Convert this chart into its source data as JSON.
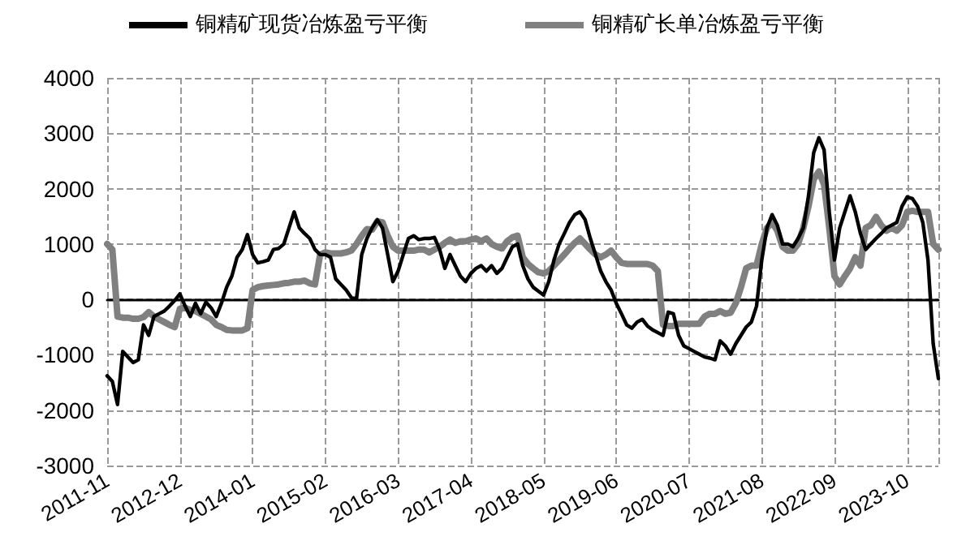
{
  "chart_data": {
    "type": "line",
    "categories": [
      "2011-11",
      null,
      null,
      null,
      null,
      null,
      null,
      null,
      null,
      null,
      null,
      null,
      null,
      null,
      "2012-12",
      null,
      null,
      null,
      null,
      null,
      null,
      null,
      null,
      null,
      null,
      null,
      null,
      null,
      "2014-01",
      null,
      null,
      null,
      null,
      null,
      null,
      null,
      null,
      null,
      null,
      null,
      null,
      null,
      "2015-02",
      null,
      null,
      null,
      null,
      null,
      null,
      null,
      null,
      null,
      null,
      null,
      null,
      null,
      "2016-03",
      null,
      null,
      null,
      null,
      null,
      null,
      null,
      null,
      null,
      null,
      null,
      null,
      null,
      "2017-04",
      null,
      null,
      null,
      null,
      null,
      null,
      null,
      null,
      null,
      null,
      null,
      null,
      null,
      "2018-05",
      null,
      null,
      null,
      null,
      null,
      null,
      null,
      null,
      null,
      null,
      null,
      null,
      null,
      "2019-06",
      null,
      null,
      null,
      null,
      null,
      null,
      null,
      null,
      null,
      null,
      null,
      null,
      null,
      "2020-07",
      null,
      null,
      null,
      null,
      null,
      null,
      null,
      null,
      null,
      null,
      null,
      null,
      null,
      "2021-08",
      null,
      null,
      null,
      null,
      null,
      null,
      null,
      null,
      null,
      null,
      null,
      null,
      null,
      "2022-09",
      null,
      null,
      null,
      null,
      null,
      null,
      null,
      null,
      null,
      null,
      null,
      null,
      null,
      "2023-10",
      null,
      null,
      null,
      null,
      null,
      null
    ],
    "series": [
      {
        "name": "铜精矿现货冶炼盈亏平衡",
        "color": "#000000",
        "values": [
          -1380,
          -1480,
          -1900,
          -940,
          -1040,
          -1140,
          -1090,
          -460,
          -650,
          -310,
          -260,
          -210,
          -120,
          -20,
          100,
          -120,
          -310,
          -70,
          -260,
          -50,
          -150,
          -310,
          -70,
          220,
          420,
          760,
          900,
          1170,
          810,
          660,
          680,
          710,
          900,
          920,
          1000,
          1290,
          1580,
          1290,
          1190,
          1100,
          900,
          810,
          810,
          760,
          370,
          270,
          170,
          30,
          10,
          810,
          1100,
          1290,
          1440,
          1290,
          810,
          320,
          510,
          810,
          1100,
          1150,
          1080,
          1100,
          1100,
          1120,
          900,
          560,
          810,
          610,
          420,
          320,
          470,
          560,
          610,
          510,
          610,
          470,
          560,
          760,
          950,
          1000,
          610,
          370,
          220,
          150,
          80,
          320,
          710,
          1000,
          1190,
          1390,
          1530,
          1580,
          1440,
          1100,
          810,
          510,
          320,
          170,
          -70,
          -260,
          -460,
          -520,
          -410,
          -360,
          -480,
          -550,
          -600,
          -650,
          -230,
          -260,
          -650,
          -840,
          -890,
          -940,
          -990,
          -1040,
          -1060,
          -1090,
          -750,
          -840,
          -990,
          -800,
          -650,
          -500,
          -410,
          -120,
          710,
          1290,
          1530,
          1340,
          1000,
          1000,
          950,
          1100,
          1290,
          1870,
          2650,
          2920,
          2700,
          1580,
          710,
          1290,
          1580,
          1870,
          1580,
          1190,
          900,
          1000,
          1100,
          1190,
          1290,
          1340,
          1390,
          1680,
          1850,
          1820,
          1680,
          1390,
          710,
          -800,
          -1430
        ]
      },
      {
        "name": "铜精矿长单冶炼盈亏平衡",
        "color": "#808080",
        "values": [
          1000,
          900,
          -310,
          -330,
          -330,
          -350,
          -350,
          -320,
          -230,
          -310,
          -360,
          -410,
          -460,
          -500,
          -170,
          -150,
          -190,
          -210,
          -260,
          -310,
          -360,
          -460,
          -500,
          -550,
          -560,
          -560,
          -560,
          -520,
          170,
          220,
          240,
          250,
          260,
          270,
          290,
          300,
          320,
          320,
          340,
          290,
          270,
          810,
          850,
          830,
          830,
          830,
          850,
          880,
          1000,
          1150,
          1270,
          1260,
          1410,
          1390,
          1150,
          950,
          880,
          880,
          880,
          880,
          900,
          900,
          850,
          900,
          950,
          1020,
          1080,
          1020,
          1050,
          1050,
          1080,
          1100,
          1050,
          1100,
          1000,
          950,
          920,
          1050,
          1120,
          1150,
          760,
          640,
          560,
          490,
          470,
          510,
          610,
          710,
          810,
          920,
          1020,
          1100,
          1000,
          900,
          810,
          760,
          810,
          880,
          760,
          660,
          640,
          640,
          640,
          640,
          640,
          610,
          510,
          -460,
          -480,
          -480,
          -440,
          -440,
          -440,
          -440,
          -440,
          -310,
          -260,
          -260,
          -210,
          -260,
          -240,
          -70,
          220,
          560,
          610,
          610,
          1000,
          1290,
          1390,
          1240,
          950,
          880,
          880,
          1000,
          1290,
          1680,
          2170,
          2310,
          2070,
          1290,
          420,
          270,
          420,
          560,
          760,
          610,
          1290,
          1340,
          1490,
          1340,
          1240,
          1290,
          1240,
          1340,
          1580,
          1600,
          1580,
          1580,
          1580,
          1000,
          900
        ]
      }
    ],
    "ylim": [
      -3000,
      4000
    ],
    "yticks": [
      -3000,
      -2000,
      -1000,
      0,
      1000,
      2000,
      3000,
      4000
    ],
    "grid": true,
    "legend": "top"
  }
}
